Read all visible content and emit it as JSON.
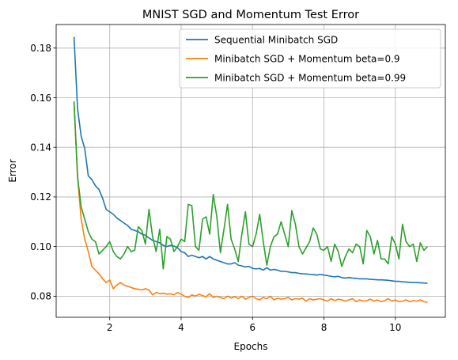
{
  "chart_data": {
    "type": "line",
    "title": "MNIST SGD and Momentum Test Error",
    "xlabel": "Epochs",
    "ylabel": "Error",
    "xlim": [
      0.5,
      11.4
    ],
    "ylim": [
      0.0715,
      0.1895
    ],
    "x_ticks": [
      2,
      4,
      6,
      8,
      10
    ],
    "x_tick_labels": [
      "2",
      "4",
      "6",
      "8",
      "10"
    ],
    "y_ticks": [
      0.08,
      0.1,
      0.12,
      0.14,
      0.16,
      0.18
    ],
    "y_tick_labels": [
      "0.08",
      "0.10",
      "0.12",
      "0.14",
      "0.16",
      "0.18"
    ],
    "grid": true,
    "legend_position": "top-right",
    "x": [
      1.0,
      1.1,
      1.2,
      1.3,
      1.4,
      1.5,
      1.6,
      1.7,
      1.8,
      1.9,
      2.0,
      2.1,
      2.2,
      2.3,
      2.4,
      2.5,
      2.6,
      2.7,
      2.8,
      2.9,
      3.0,
      3.1,
      3.2,
      3.3,
      3.4,
      3.5,
      3.6,
      3.7,
      3.8,
      3.9,
      4.0,
      4.1,
      4.2,
      4.3,
      4.4,
      4.5,
      4.6,
      4.7,
      4.8,
      4.9,
      5.0,
      5.1,
      5.2,
      5.3,
      5.4,
      5.5,
      5.6,
      5.7,
      5.8,
      5.9,
      6.0,
      6.1,
      6.2,
      6.3,
      6.4,
      6.5,
      6.6,
      6.7,
      6.8,
      6.9,
      7.0,
      7.1,
      7.2,
      7.3,
      7.4,
      7.5,
      7.6,
      7.7,
      7.8,
      7.9,
      8.0,
      8.1,
      8.2,
      8.3,
      8.4,
      8.5,
      8.6,
      8.7,
      8.8,
      8.9,
      9.0,
      9.1,
      9.2,
      9.3,
      9.4,
      9.5,
      9.6,
      9.7,
      9.8,
      9.9,
      10.0,
      10.1,
      10.2,
      10.3,
      10.4,
      10.5,
      10.6,
      10.7,
      10.8,
      10.9
    ],
    "series": [
      {
        "name": "Sequential Minibatch SGD",
        "color": "#1f77b4",
        "values": [
          0.1845,
          0.1555,
          0.1445,
          0.1395,
          0.1285,
          0.127,
          0.1245,
          0.123,
          0.1195,
          0.115,
          0.114,
          0.113,
          0.1115,
          0.1105,
          0.1095,
          0.1085,
          0.107,
          0.1065,
          0.106,
          0.105,
          0.1045,
          0.1035,
          0.1025,
          0.102,
          0.1015,
          0.1005,
          0.1,
          0.1005,
          0.1002,
          0.0995,
          0.098,
          0.0975,
          0.096,
          0.0965,
          0.096,
          0.0955,
          0.096,
          0.095,
          0.096,
          0.095,
          0.0945,
          0.094,
          0.0935,
          0.093,
          0.093,
          0.0935,
          0.0925,
          0.0922,
          0.0918,
          0.092,
          0.0912,
          0.091,
          0.0912,
          0.0905,
          0.0915,
          0.0905,
          0.0908,
          0.0905,
          0.09,
          0.09,
          0.0898,
          0.0895,
          0.0895,
          0.0892,
          0.089,
          0.089,
          0.0888,
          0.0887,
          0.0885,
          0.0888,
          0.0885,
          0.0883,
          0.088,
          0.0878,
          0.088,
          0.0875,
          0.0873,
          0.0875,
          0.0873,
          0.0872,
          0.087,
          0.087,
          0.087,
          0.0868,
          0.0867,
          0.0866,
          0.0866,
          0.0865,
          0.0864,
          0.0862,
          0.086,
          0.086,
          0.0858,
          0.0857,
          0.0856,
          0.0855,
          0.0855,
          0.0854,
          0.0853,
          0.0852
        ]
      },
      {
        "name": "Minibatch SGD + Momentum beta=0.9",
        "color": "#ff7f0e",
        "values": [
          0.158,
          0.128,
          0.111,
          0.103,
          0.098,
          0.092,
          0.0905,
          0.089,
          0.087,
          0.0855,
          0.0865,
          0.083,
          0.0845,
          0.0855,
          0.0845,
          0.084,
          0.0835,
          0.083,
          0.0828,
          0.0825,
          0.083,
          0.0825,
          0.0805,
          0.0815,
          0.081,
          0.0812,
          0.0808,
          0.081,
          0.0805,
          0.0815,
          0.0808,
          0.08,
          0.0795,
          0.0805,
          0.08,
          0.0808,
          0.0802,
          0.0798,
          0.081,
          0.0795,
          0.08,
          0.0795,
          0.079,
          0.08,
          0.0792,
          0.0798,
          0.079,
          0.08,
          0.0788,
          0.0795,
          0.08,
          0.079,
          0.0785,
          0.0795,
          0.079,
          0.08,
          0.0785,
          0.0792,
          0.0788,
          0.079,
          0.0795,
          0.0785,
          0.079,
          0.0788,
          0.0792,
          0.078,
          0.079,
          0.0785,
          0.0788,
          0.079,
          0.0785,
          0.078,
          0.079,
          0.0782,
          0.0788,
          0.0785,
          0.078,
          0.0785,
          0.079,
          0.0778,
          0.0785,
          0.078,
          0.0782,
          0.0788,
          0.078,
          0.0785,
          0.0778,
          0.0782,
          0.079,
          0.078,
          0.0785,
          0.0778,
          0.078,
          0.0785,
          0.0778,
          0.0782,
          0.078,
          0.0785,
          0.0778,
          0.0775
        ]
      },
      {
        "name": "Minibatch SGD + Momentum beta=0.99",
        "color": "#2ca02c",
        "values": [
          0.1585,
          0.128,
          0.116,
          0.111,
          0.106,
          0.103,
          0.102,
          0.097,
          0.0985,
          0.1,
          0.102,
          0.098,
          0.096,
          0.095,
          0.097,
          0.1,
          0.098,
          0.0985,
          0.108,
          0.1065,
          0.101,
          0.115,
          0.104,
          0.098,
          0.107,
          0.091,
          0.104,
          0.103,
          0.098,
          0.1,
          0.103,
          0.102,
          0.117,
          0.1165,
          0.1,
          0.0985,
          0.111,
          0.112,
          0.105,
          0.121,
          0.112,
          0.0975,
          0.107,
          0.117,
          0.103,
          0.099,
          0.094,
          0.105,
          0.114,
          0.101,
          0.1,
          0.105,
          0.113,
          0.102,
          0.0925,
          0.1,
          0.104,
          0.105,
          0.11,
          0.105,
          0.1,
          0.1145,
          0.109,
          0.1,
          0.097,
          0.0995,
          0.102,
          0.1075,
          0.105,
          0.099,
          0.0985,
          0.1,
          0.094,
          0.101,
          0.098,
          0.092,
          0.096,
          0.099,
          0.0975,
          0.101,
          0.1,
          0.093,
          0.1065,
          0.104,
          0.097,
          0.1025,
          0.095,
          0.095,
          0.093,
          0.104,
          0.101,
          0.095,
          0.109,
          0.102,
          0.1,
          0.101,
          0.094,
          0.1015,
          0.0985,
          0.1
        ]
      }
    ]
  }
}
